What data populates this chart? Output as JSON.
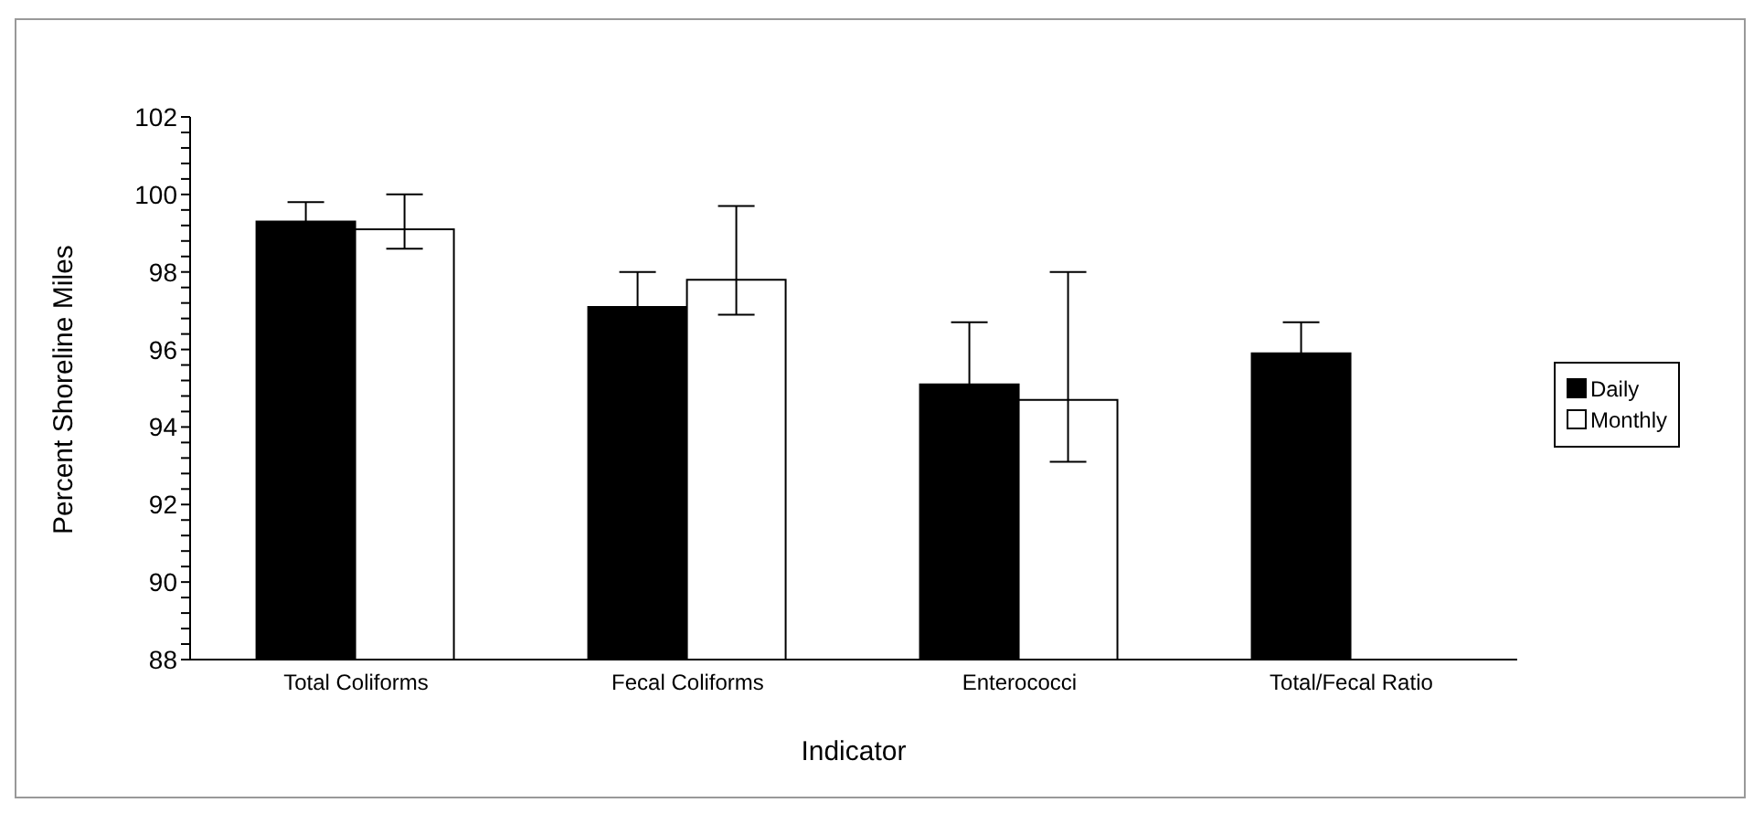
{
  "chart_data": {
    "type": "bar",
    "xlabel": "Indicator",
    "ylabel": "Percent Shoreline Miles",
    "categories": [
      "Total Coliforms",
      "Fecal Coliforms",
      "Enterococci",
      "Total/Fecal Ratio"
    ],
    "series": [
      {
        "name": "Daily",
        "color": "#000000",
        "values": [
          99.3,
          97.1,
          95.1,
          95.9
        ],
        "errors": [
          0.5,
          0.9,
          1.6,
          0.8
        ]
      },
      {
        "name": "Monthly",
        "color": "#ffffff",
        "values": [
          99.1,
          97.8,
          94.7,
          null
        ],
        "errors": [
          [
            98.6,
            100.0
          ],
          [
            96.9,
            99.7
          ],
          [
            93.1,
            98.0
          ],
          null
        ]
      }
    ],
    "ylim": [
      88,
      102
    ],
    "yticks": [
      88,
      {
        "value": 88.4,
        "label": null
      },
      {
        "value": 88.8,
        "label": null
      },
      {
        "value": 89.2,
        "label": null
      },
      {
        "value": 89.6,
        "label": null
      },
      90,
      {
        "value": 90.4,
        "label": null
      },
      {
        "value": 90.8,
        "label": null
      },
      {
        "value": 91.2,
        "label": null
      },
      {
        "value": 91.6,
        "label": null
      },
      92,
      {
        "value": 92.4,
        "label": null
      },
      {
        "value": 92.8,
        "label": null
      },
      {
        "value": 93.2,
        "label": null
      },
      {
        "value": 93.6,
        "label": null
      },
      94,
      {
        "value": 94.4,
        "label": null
      },
      {
        "value": 94.8,
        "label": null
      },
      {
        "value": 95.2,
        "label": null
      },
      {
        "value": 95.6,
        "label": null
      },
      96,
      {
        "value": 96.4,
        "label": null
      },
      {
        "value": 96.8,
        "label": null
      },
      {
        "value": 97.2,
        "label": null
      },
      {
        "value": 97.6,
        "label": null
      },
      98,
      {
        "value": 98.4,
        "label": null
      },
      {
        "value": 98.8,
        "label": null
      },
      {
        "value": 99.2,
        "label": null
      },
      {
        "value": 99.6,
        "label": null
      },
      100,
      {
        "value": 100.4,
        "label": null
      },
      {
        "value": 100.8,
        "label": null
      },
      {
        "value": 101.2,
        "label": null
      },
      {
        "value": 101.6,
        "label": null
      },
      102
    ],
    "grid": false,
    "legend": "right"
  }
}
